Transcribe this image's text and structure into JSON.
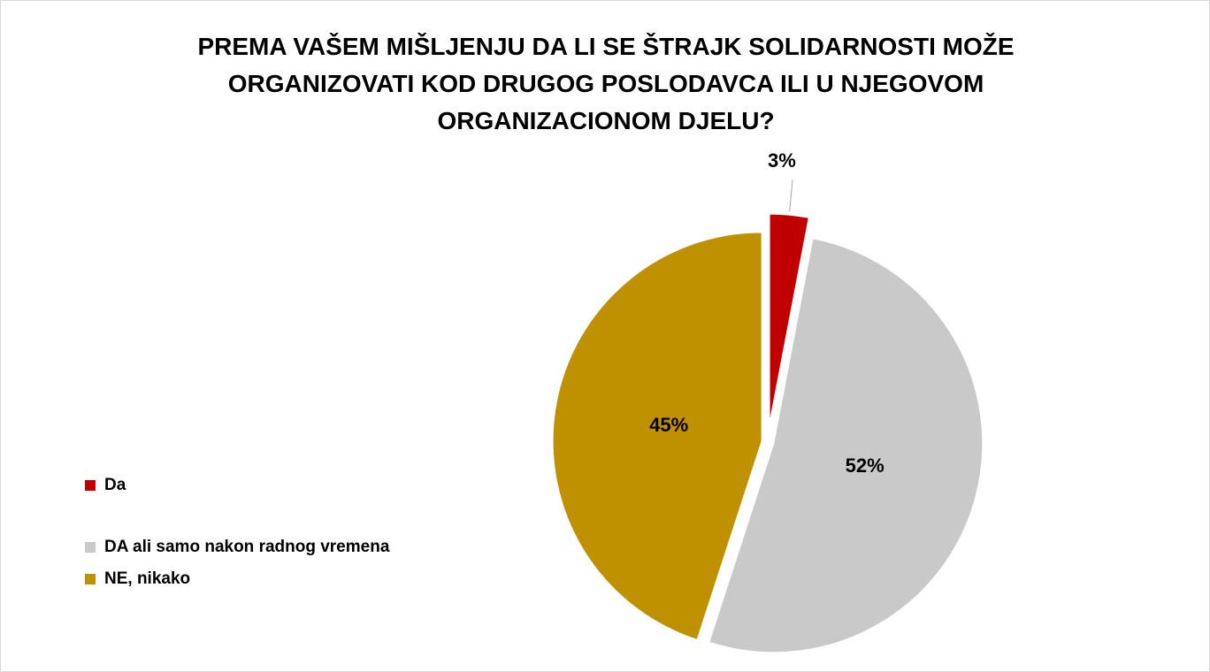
{
  "chart_data": {
    "type": "pie",
    "title": "PREMA VAŠEM MIŠLJENJU DA LI SE ŠTRAJK SOLIDARNOSTI MOŽE ORGANIZOVATI KOD DRUGOG POSLODAVCA ILI U NJEGOVOM ORGANIZACIONOM DJELU?",
    "categories": [
      "Da",
      "DA ali samo nakon radnog vremena",
      "NE, nikako"
    ],
    "values": [
      3,
      52,
      45
    ],
    "value_labels": [
      "3%",
      "52%",
      "45%"
    ],
    "colors": [
      "#c00000",
      "#c9c9c9",
      "#bf9000"
    ],
    "legend": "left"
  }
}
